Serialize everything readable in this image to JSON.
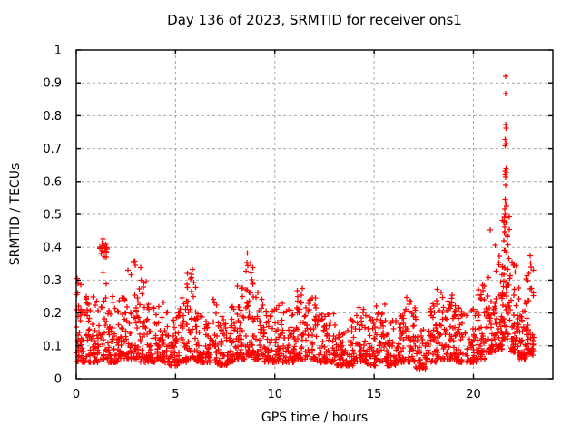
{
  "chart_data": {
    "type": "scatter",
    "title": "Day 136 of 2023, SRMTID for receiver ons1",
    "xlabel": "GPS time / hours",
    "ylabel": "SRMTID / TECUs",
    "xlim": [
      0,
      24
    ],
    "ylim": [
      0,
      1
    ],
    "xticks": [
      0,
      5,
      10,
      15,
      20
    ],
    "yticks": [
      0,
      0.1,
      0.2,
      0.3,
      0.4,
      0.5,
      0.6,
      0.7,
      0.8,
      0.9,
      1
    ],
    "grid": true,
    "legend": "none",
    "marker": {
      "shape": "plus",
      "color": "#ff0000",
      "size": 7
    },
    "data_span_hours": [
      0,
      23.05
    ],
    "seed": 136,
    "density_bands_note": "Each band is [hour_start, hour_end, point_count, y_min, y_max] describing the noisy scatter envelope read from the plot; points concentrate toward y_min.",
    "density_bands": [
      [
        0.0,
        0.25,
        30,
        0.05,
        0.31
      ],
      [
        0.25,
        0.75,
        44,
        0.05,
        0.26
      ],
      [
        0.75,
        1.15,
        38,
        0.05,
        0.28
      ],
      [
        1.15,
        1.65,
        46,
        0.06,
        0.42
      ],
      [
        1.65,
        2.1,
        40,
        0.05,
        0.26
      ],
      [
        2.1,
        2.6,
        44,
        0.06,
        0.28
      ],
      [
        2.6,
        3.15,
        46,
        0.06,
        0.36
      ],
      [
        3.15,
        3.65,
        44,
        0.05,
        0.3
      ],
      [
        3.65,
        4.15,
        40,
        0.05,
        0.22
      ],
      [
        4.15,
        4.65,
        40,
        0.05,
        0.24
      ],
      [
        4.65,
        5.1,
        40,
        0.04,
        0.19
      ],
      [
        5.1,
        5.55,
        40,
        0.05,
        0.25
      ],
      [
        5.55,
        6.05,
        44,
        0.06,
        0.33
      ],
      [
        6.05,
        6.55,
        40,
        0.05,
        0.21
      ],
      [
        6.55,
        7.1,
        44,
        0.05,
        0.27
      ],
      [
        7.1,
        7.6,
        40,
        0.04,
        0.19
      ],
      [
        7.6,
        8.1,
        40,
        0.05,
        0.22
      ],
      [
        8.1,
        8.55,
        44,
        0.06,
        0.3
      ],
      [
        8.55,
        8.9,
        38,
        0.07,
        0.38
      ],
      [
        8.9,
        9.4,
        40,
        0.06,
        0.27
      ],
      [
        9.4,
        9.95,
        44,
        0.05,
        0.21
      ],
      [
        9.95,
        10.5,
        44,
        0.05,
        0.23
      ],
      [
        10.5,
        11.0,
        44,
        0.05,
        0.21
      ],
      [
        11.0,
        11.55,
        48,
        0.06,
        0.28
      ],
      [
        11.55,
        12.1,
        46,
        0.06,
        0.27
      ],
      [
        12.1,
        12.6,
        40,
        0.05,
        0.2
      ],
      [
        12.6,
        13.1,
        40,
        0.05,
        0.22
      ],
      [
        13.1,
        13.6,
        38,
        0.04,
        0.18
      ],
      [
        13.6,
        14.1,
        38,
        0.04,
        0.18
      ],
      [
        14.1,
        14.6,
        40,
        0.05,
        0.22
      ],
      [
        14.6,
        15.1,
        40,
        0.04,
        0.19
      ],
      [
        15.1,
        15.6,
        40,
        0.05,
        0.23
      ],
      [
        15.6,
        16.1,
        38,
        0.04,
        0.18
      ],
      [
        16.1,
        16.6,
        40,
        0.05,
        0.22
      ],
      [
        16.6,
        17.1,
        40,
        0.05,
        0.25
      ],
      [
        17.1,
        17.65,
        38,
        0.03,
        0.15
      ],
      [
        17.65,
        18.15,
        40,
        0.05,
        0.23
      ],
      [
        18.15,
        18.65,
        44,
        0.06,
        0.28
      ],
      [
        18.65,
        19.15,
        44,
        0.06,
        0.26
      ],
      [
        19.15,
        19.65,
        40,
        0.05,
        0.22
      ],
      [
        19.65,
        20.15,
        40,
        0.05,
        0.22
      ],
      [
        20.15,
        20.65,
        44,
        0.06,
        0.3
      ],
      [
        20.65,
        21.1,
        44,
        0.08,
        0.33
      ],
      [
        21.1,
        21.45,
        40,
        0.09,
        0.42
      ],
      [
        21.45,
        21.85,
        58,
        0.12,
        0.5
      ],
      [
        21.85,
        22.3,
        46,
        0.08,
        0.36
      ],
      [
        22.3,
        22.65,
        38,
        0.06,
        0.24
      ],
      [
        22.65,
        23.05,
        44,
        0.07,
        0.38
      ]
    ],
    "peak_points_note": "Individually readable high outlier points [hour, TECUs].",
    "peak_points": [
      [
        21.62,
        0.92
      ],
      [
        21.62,
        0.868
      ],
      [
        21.63,
        0.773
      ],
      [
        21.65,
        0.762
      ],
      [
        21.61,
        0.728
      ],
      [
        21.64,
        0.716
      ],
      [
        21.6,
        0.708
      ],
      [
        21.64,
        0.64
      ],
      [
        21.61,
        0.632
      ],
      [
        21.67,
        0.627
      ],
      [
        21.59,
        0.62
      ],
      [
        21.63,
        0.613
      ],
      [
        21.62,
        0.588
      ],
      [
        21.6,
        0.545
      ],
      [
        21.62,
        0.535
      ],
      [
        21.66,
        0.525
      ],
      [
        21.58,
        0.517
      ],
      [
        21.61,
        0.5
      ],
      [
        21.68,
        0.49
      ],
      [
        21.64,
        0.475
      ],
      [
        21.57,
        0.462
      ],
      [
        20.85,
        0.453
      ],
      [
        21.55,
        0.443
      ],
      [
        21.71,
        0.432
      ],
      [
        21.52,
        0.42
      ],
      [
        21.74,
        0.408
      ],
      [
        1.35,
        0.425
      ],
      [
        1.38,
        0.405
      ],
      [
        1.3,
        0.39
      ],
      [
        1.42,
        0.372
      ],
      [
        2.95,
        0.358
      ],
      [
        2.98,
        0.345
      ],
      [
        3.25,
        0.338
      ],
      [
        5.85,
        0.333
      ],
      [
        5.8,
        0.318
      ],
      [
        8.62,
        0.383
      ],
      [
        8.6,
        0.353
      ],
      [
        8.64,
        0.344
      ],
      [
        8.55,
        0.328
      ],
      [
        22.85,
        0.375
      ],
      [
        22.88,
        0.352
      ],
      [
        22.9,
        0.34
      ],
      [
        21.95,
        0.355
      ],
      [
        22.02,
        0.345
      ],
      [
        0.05,
        0.305
      ],
      [
        0.08,
        0.29
      ]
    ]
  },
  "colors": {
    "marker": "#ff0000",
    "grid": "#a8a8a8",
    "axis": "#000000",
    "text": "#000000",
    "background": "#ffffff"
  }
}
